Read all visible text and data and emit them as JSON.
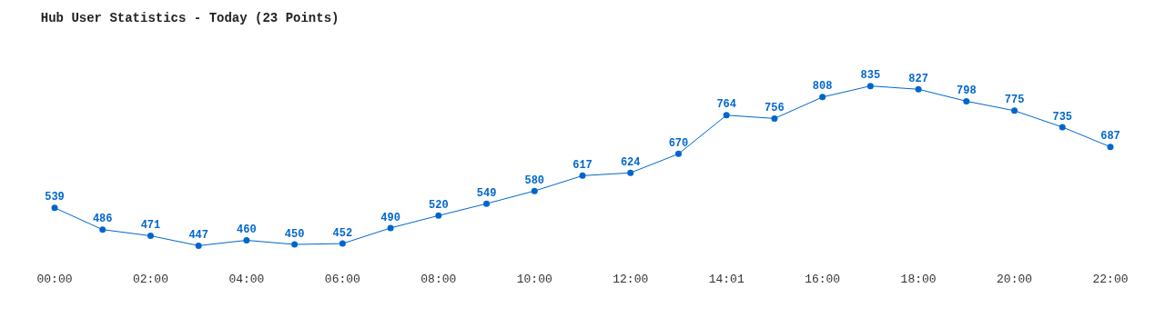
{
  "chart_data": {
    "type": "line",
    "title": "Hub User Statistics - Today (23 Points)",
    "categories": [
      "00:00",
      null,
      "02:00",
      null,
      "04:00",
      null,
      "06:00",
      null,
      "08:00",
      null,
      "10:00",
      null,
      "12:00",
      null,
      "14:01",
      null,
      "16:00",
      null,
      "18:00",
      null,
      "20:00",
      null,
      "22:00"
    ],
    "series": [
      {
        "color": "#0066cc",
        "values": [
          539,
          486,
          471,
          447,
          460,
          450,
          452,
          490,
          520,
          549,
          580,
          617,
          624,
          670,
          764,
          756,
          808,
          835,
          827,
          798,
          775,
          735,
          687
        ]
      }
    ],
    "data_labels": true,
    "marker": "circle",
    "line_style": "solid",
    "tick_labels": "x"
  }
}
